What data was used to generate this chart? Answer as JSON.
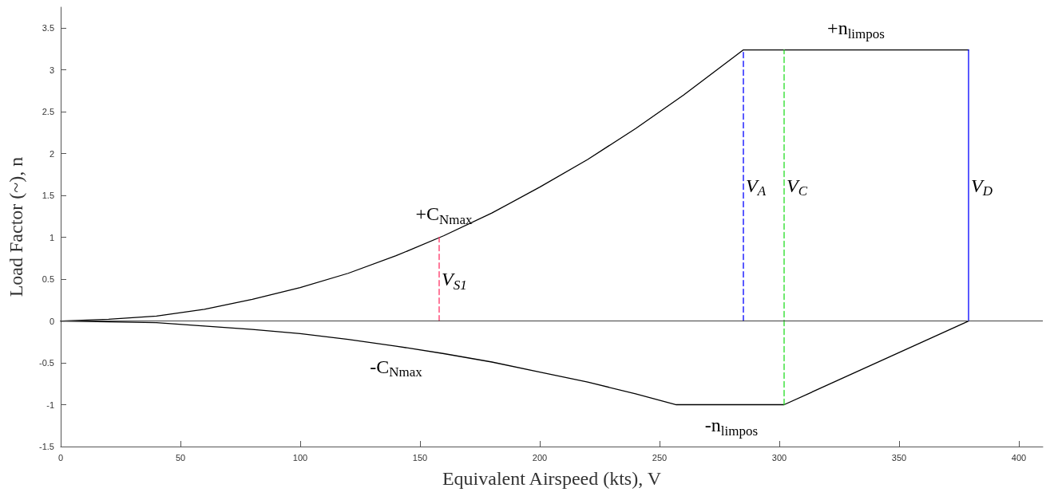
{
  "chart_data": {
    "type": "line",
    "xlabel": "Equivalent Airspeed (kts), V",
    "ylabel": "Load Factor (~), n",
    "xlim": [
      0,
      410
    ],
    "ylim": [
      -1.5,
      3.75
    ],
    "xticks": [
      0,
      50,
      100,
      150,
      200,
      250,
      300,
      350,
      400
    ],
    "yticks": [
      -1.5,
      -1,
      -0.5,
      0,
      0.5,
      1,
      1.5,
      2,
      2.5,
      3,
      3.5
    ],
    "grid": false,
    "marker": "none",
    "series": [
      {
        "color": "#000000",
        "line_style": "solid",
        "x": [
          0,
          20,
          40,
          60,
          80,
          100,
          120,
          140,
          160,
          180,
          200,
          220,
          240,
          260,
          285,
          379
        ],
        "values": [
          0,
          0.02,
          0.06,
          0.14,
          0.26,
          0.4,
          0.57,
          0.78,
          1.02,
          1.29,
          1.6,
          1.93,
          2.3,
          2.7,
          3.24,
          3.24
        ]
      },
      {
        "color": "#000000",
        "line_style": "solid",
        "x": [
          0,
          20,
          40,
          60,
          80,
          100,
          120,
          140,
          160,
          180,
          200,
          220,
          240,
          257,
          302,
          379
        ],
        "values": [
          0,
          -0.01,
          -0.02,
          -0.06,
          -0.1,
          -0.15,
          -0.22,
          -0.3,
          -0.39,
          -0.49,
          -0.61,
          -0.73,
          -0.87,
          -1,
          -1,
          0
        ]
      },
      {
        "name": "V$_{S1}$",
        "color": "#ff3366",
        "line_style": "dashed",
        "x": [
          158,
          158
        ],
        "values": [
          0,
          1
        ]
      },
      {
        "name": "V$_{A}$",
        "color": "#0000ff",
        "line_style": "dashed",
        "x": [
          285,
          285
        ],
        "values": [
          0,
          3.24
        ]
      },
      {
        "name": "V$_{C}$",
        "color": "#22dd22",
        "line_style": "dashed",
        "x": [
          302,
          302
        ],
        "values": [
          -1,
          3.24
        ]
      },
      {
        "name": "V$_{D}$",
        "color": "#0000ff",
        "line_style": "solid",
        "x": [
          379,
          379
        ],
        "values": [
          0,
          3.24
        ]
      }
    ],
    "ref_lines": [
      {
        "axis": "y",
        "value": 0,
        "color": "#404040"
      }
    ],
    "annotations": [
      {
        "text": "+C$_{Nmax}$",
        "x": 160,
        "y": 1.02
      },
      {
        "text": "-C$_{Nmax}$",
        "x": 140,
        "y": -0.3
      },
      {
        "text": "+n$_{limpos}$",
        "x": 332,
        "y": 3.24
      },
      {
        "text": "-n$_{limpos}$",
        "x": 280,
        "y": -1
      }
    ]
  }
}
